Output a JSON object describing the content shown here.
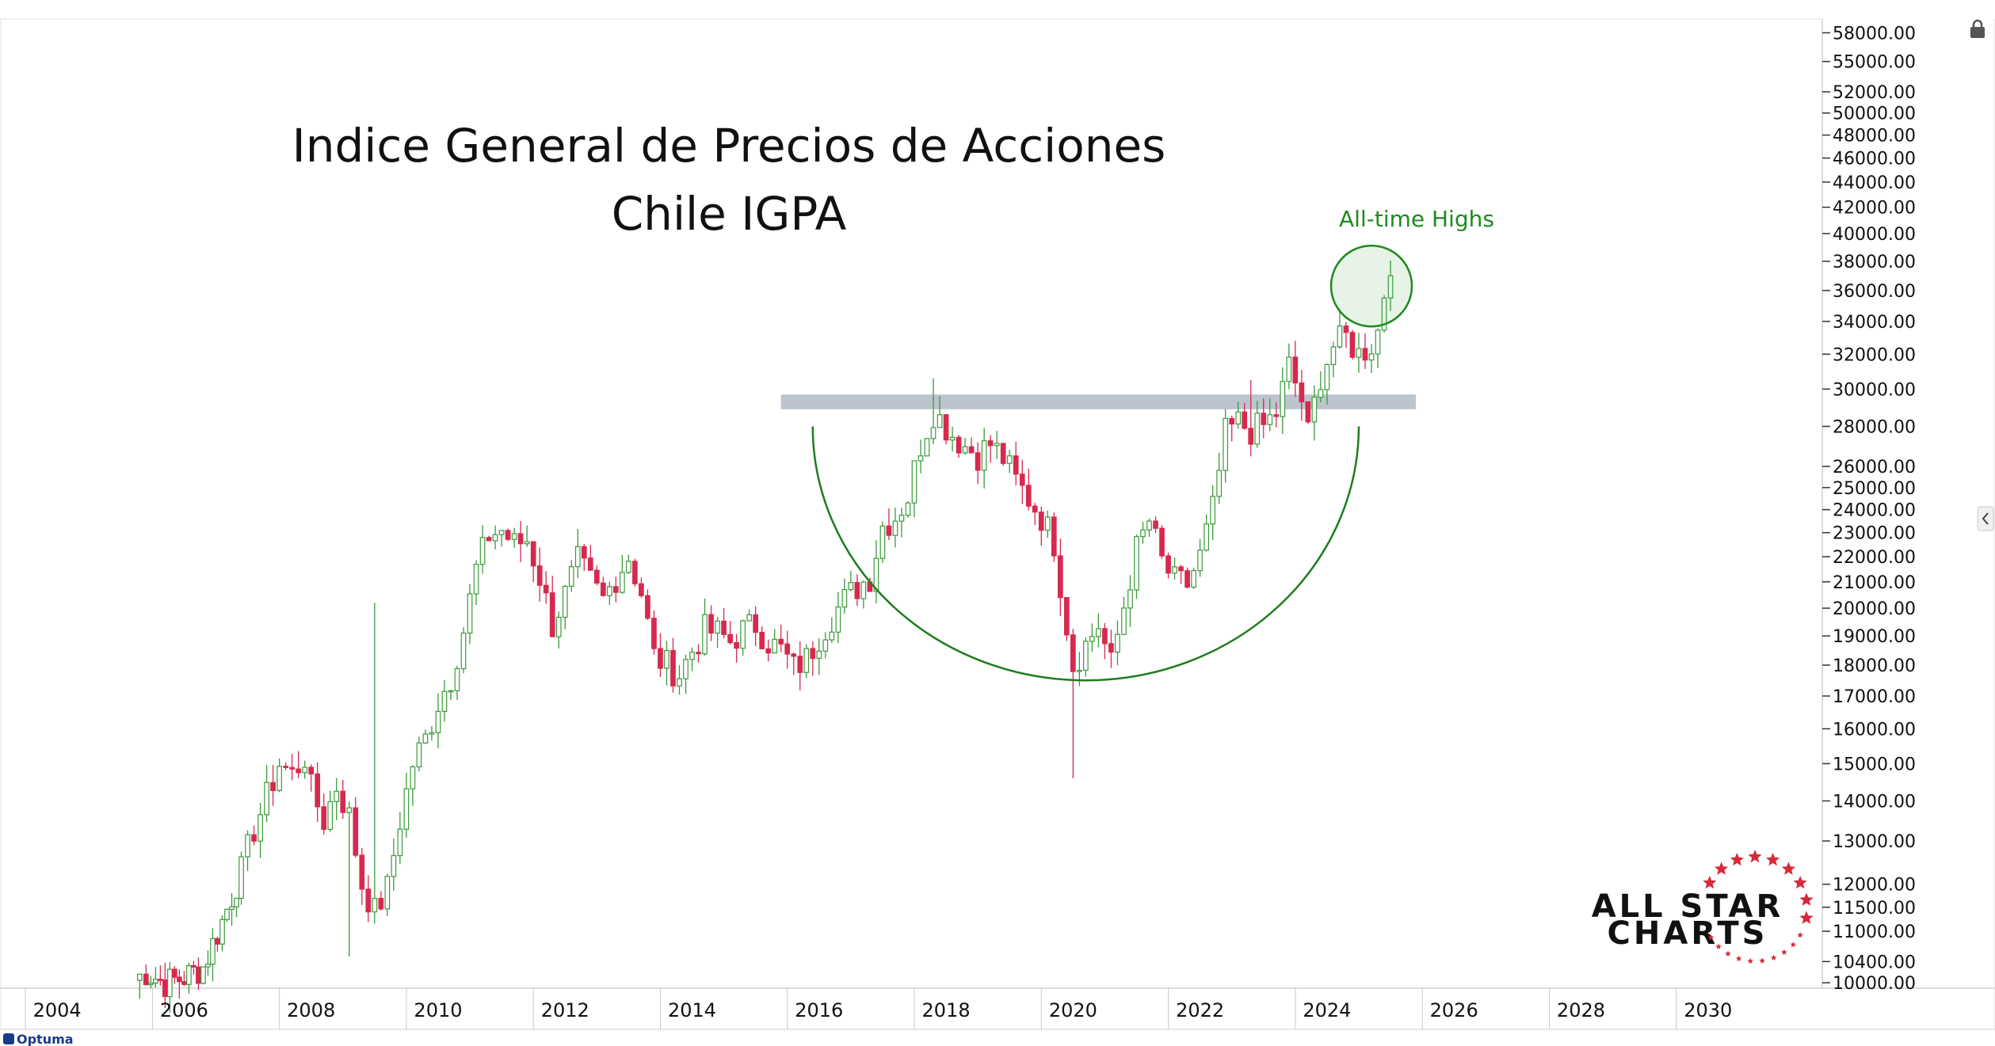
{
  "chart_data": {
    "type": "candlestick",
    "title": "Indice General de Precios de Acciones",
    "subtitle": "Chile IGPA",
    "y_scale": "log",
    "ylim": [
      9900,
      59500
    ],
    "xlim": [
      2003.1,
      2031.8
    ],
    "y_ticks": [
      58000,
      55000,
      52000,
      50000,
      48000,
      46000,
      44000,
      42000,
      40000,
      38000,
      36000,
      34000,
      32000,
      30000,
      28000,
      26000,
      25000,
      24000,
      23000,
      22000,
      21000,
      20000,
      19000,
      18000,
      17000,
      16000,
      15000,
      14000,
      13000,
      12000,
      11500,
      11000,
      10400,
      10000
    ],
    "y_tick_labels": [
      "58000.00",
      "55000.00",
      "52000.00",
      "50000.00",
      "48000.00",
      "46000.00",
      "44000.00",
      "42000.00",
      "40000.00",
      "38000.00",
      "36000.00",
      "34000.00",
      "32000.00",
      "30000.00",
      "28000.00",
      "26000.00",
      "25000.00",
      "24000.00",
      "23000.00",
      "22000.00",
      "21000.00",
      "20000.00",
      "19000.00",
      "18000.00",
      "17000.00",
      "16000.00",
      "15000.00",
      "14000.00",
      "13000.00",
      "12000.00",
      "11500.00",
      "11000.00",
      "10400.00",
      "10000.00"
    ],
    "x_ticks": [
      2004,
      2006,
      2008,
      2010,
      2012,
      2014,
      2016,
      2018,
      2020,
      2022,
      2024,
      2026,
      2028,
      2030
    ],
    "x_tick_labels": [
      "2004",
      "2006",
      "2008",
      "2010",
      "2012",
      "2014",
      "2016",
      "2018",
      "2020",
      "2022",
      "2024",
      "2026",
      "2028",
      "2030"
    ],
    "grid": false,
    "up_color": "#3a9a3a",
    "down_color": "#d6294f",
    "monthly_close_path": [
      [
        2005.2,
        10050
      ],
      [
        2005.4,
        10200
      ],
      [
        2005.7,
        10000
      ],
      [
        2006.0,
        10100
      ],
      [
        2006.3,
        10300
      ],
      [
        2006.6,
        11200
      ],
      [
        2006.9,
        12300
      ],
      [
        2007.1,
        13300
      ],
      [
        2007.3,
        14100
      ],
      [
        2007.5,
        15000
      ],
      [
        2007.7,
        14700
      ],
      [
        2007.9,
        15200
      ],
      [
        2008.0,
        14300
      ],
      [
        2008.2,
        13500
      ],
      [
        2008.4,
        14400
      ],
      [
        2008.6,
        13600
      ],
      [
        2008.8,
        12000
      ],
      [
        2009.0,
        11400
      ],
      [
        2009.2,
        11900
      ],
      [
        2009.4,
        13500
      ],
      [
        2009.6,
        15000
      ],
      [
        2009.8,
        15700
      ],
      [
        2010.0,
        16800
      ],
      [
        2010.2,
        17600
      ],
      [
        2010.4,
        19200
      ],
      [
        2010.6,
        21500
      ],
      [
        2010.8,
        22900
      ],
      [
        2011.0,
        23100
      ],
      [
        2011.2,
        22500
      ],
      [
        2011.4,
        22700
      ],
      [
        2011.6,
        21200
      ],
      [
        2011.8,
        19400
      ],
      [
        2012.0,
        20500
      ],
      [
        2012.2,
        21800
      ],
      [
        2012.4,
        21000
      ],
      [
        2012.6,
        20300
      ],
      [
        2012.8,
        21200
      ],
      [
        2013.0,
        22000
      ],
      [
        2013.2,
        20600
      ],
      [
        2013.4,
        18300
      ],
      [
        2013.6,
        18000
      ],
      [
        2013.8,
        17700
      ],
      [
        2014.0,
        18500
      ],
      [
        2014.2,
        19200
      ],
      [
        2014.4,
        19100
      ],
      [
        2014.6,
        18800
      ],
      [
        2014.8,
        19200
      ],
      [
        2015.0,
        19400
      ],
      [
        2015.2,
        18800
      ],
      [
        2015.4,
        18500
      ],
      [
        2015.6,
        17900
      ],
      [
        2015.8,
        18200
      ],
      [
        2016.0,
        19000
      ],
      [
        2016.2,
        19700
      ],
      [
        2016.4,
        20300
      ],
      [
        2016.6,
        20800
      ],
      [
        2016.8,
        21200
      ],
      [
        2017.0,
        23300
      ],
      [
        2017.2,
        23700
      ],
      [
        2017.4,
        24600
      ],
      [
        2017.6,
        27100
      ],
      [
        2017.8,
        28800
      ],
      [
        2017.9,
        28400
      ],
      [
        2018.1,
        27600
      ],
      [
        2018.3,
        27000
      ],
      [
        2018.5,
        26600
      ],
      [
        2018.7,
        27100
      ],
      [
        2018.9,
        26400
      ],
      [
        2019.1,
        25300
      ],
      [
        2019.3,
        24500
      ],
      [
        2019.5,
        23700
      ],
      [
        2019.7,
        22600
      ],
      [
        2019.9,
        19400
      ],
      [
        2020.0,
        18000
      ],
      [
        2020.2,
        18700
      ],
      [
        2020.4,
        19400
      ],
      [
        2020.6,
        18000
      ],
      [
        2020.8,
        20100
      ],
      [
        2021.0,
        22300
      ],
      [
        2021.2,
        23500
      ],
      [
        2021.4,
        21800
      ],
      [
        2021.6,
        21000
      ],
      [
        2021.8,
        20900
      ],
      [
        2022.0,
        22000
      ],
      [
        2022.2,
        24000
      ],
      [
        2022.4,
        27600
      ],
      [
        2022.6,
        28200
      ],
      [
        2022.8,
        27800
      ],
      [
        2023.0,
        28000
      ],
      [
        2023.2,
        28700
      ],
      [
        2023.4,
        31300
      ],
      [
        2023.6,
        29400
      ],
      [
        2023.7,
        27600
      ],
      [
        2023.9,
        30800
      ],
      [
        2024.1,
        32500
      ],
      [
        2024.3,
        33000
      ],
      [
        2024.5,
        32000
      ],
      [
        2024.7,
        32600
      ],
      [
        2024.8,
        33400
      ],
      [
        2024.9,
        35900
      ],
      [
        2025.0,
        37000
      ]
    ],
    "annotations": {
      "resistance_zone": {
        "x_start": 2015.4,
        "x_end": 2025.4,
        "y_low": 28900,
        "y_high": 29700
      },
      "cup_arc": {
        "x_start": 2015.9,
        "x_end": 2024.5,
        "y_bottom": 17500,
        "y_top": 28000
      },
      "circle_label": "All-time Highs",
      "circle_center": {
        "x": 2024.7,
        "y": 36300
      }
    }
  },
  "logo": {
    "line1": "ALL STAR",
    "line2": "CHARTS"
  },
  "brand": "Optuma"
}
